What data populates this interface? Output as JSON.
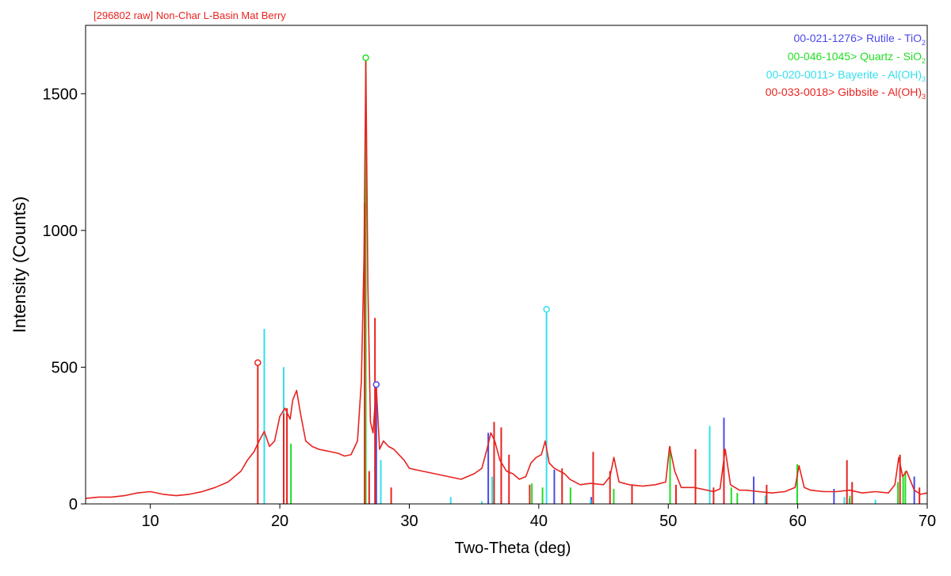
{
  "chart_data": {
    "type": "line",
    "title": "[296802 raw] Non-Char L-Basin Mat Berry",
    "xlabel": "Two-Theta (deg)",
    "ylabel": "Intensity (Counts)",
    "xlim": [
      5,
      70
    ],
    "ylim": [
      0,
      1750
    ],
    "x_ticks": [
      10,
      20,
      30,
      40,
      50,
      60,
      70
    ],
    "y_ticks": [
      0,
      500,
      1000,
      1500
    ],
    "grid": false,
    "legend_position": "top-right",
    "series": [
      {
        "type": "line",
        "color": "#e8231f",
        "x": [
          5,
          6,
          7,
          8,
          9,
          10,
          11,
          12,
          13,
          14,
          15,
          16,
          16.5,
          17,
          17.5,
          18,
          18.4,
          18.8,
          19.2,
          19.6,
          20,
          20.4,
          20.8,
          21,
          21.3,
          21.6,
          22,
          22.5,
          23,
          23.5,
          24,
          24.5,
          25,
          25.5,
          26,
          26.3,
          26.5,
          26.64,
          26.8,
          27,
          27.2,
          27.45,
          27.7,
          28,
          28.4,
          28.8,
          29.2,
          29.6,
          30,
          31,
          32,
          33,
          34,
          35,
          35.6,
          36,
          36.3,
          36.6,
          37,
          37.5,
          38,
          38.5,
          39,
          39.4,
          39.8,
          40.2,
          40.5,
          40.8,
          41.2,
          41.6,
          42,
          42.4,
          42.8,
          43.2,
          44,
          45,
          45.5,
          45.8,
          46.2,
          47,
          48,
          49,
          49.8,
          50.1,
          50.5,
          51,
          52,
          53,
          53.5,
          54,
          54.4,
          54.8,
          55.5,
          56,
          57,
          58,
          59,
          59.8,
          60.1,
          60.5,
          61,
          62,
          63,
          64,
          65,
          66,
          67,
          67.5,
          67.8,
          68.1,
          68.4,
          69,
          69.5,
          70
        ],
        "y": [
          20,
          25,
          25,
          30,
          40,
          45,
          35,
          30,
          35,
          45,
          60,
          80,
          100,
          120,
          160,
          190,
          230,
          265,
          210,
          230,
          320,
          350,
          310,
          380,
          415,
          330,
          230,
          210,
          200,
          195,
          190,
          185,
          175,
          180,
          230,
          450,
          900,
          1620,
          800,
          300,
          260,
          430,
          200,
          230,
          210,
          200,
          180,
          160,
          130,
          120,
          110,
          100,
          90,
          110,
          130,
          200,
          260,
          230,
          160,
          120,
          110,
          90,
          100,
          150,
          170,
          180,
          230,
          150,
          130,
          120,
          110,
          90,
          80,
          70,
          75,
          70,
          100,
          170,
          80,
          70,
          65,
          70,
          80,
          210,
          120,
          60,
          60,
          50,
          45,
          55,
          200,
          70,
          50,
          50,
          45,
          40,
          45,
          60,
          140,
          60,
          50,
          45,
          45,
          50,
          40,
          45,
          40,
          70,
          170,
          100,
          120,
          50,
          35,
          40
        ]
      }
    ],
    "references": [
      {
        "code": "00-021-1276",
        "name": "Rutile",
        "formula_base": "TiO",
        "formula_sub": "2",
        "color": "#4a4ae8",
        "marker_x": 27.45,
        "x": [
          27.45,
          36.1,
          41.2,
          44.05,
          54.3,
          56.6,
          62.8,
          64.0,
          69.0
        ],
        "y": [
          425,
          260,
          125,
          25,
          315,
          100,
          55,
          20,
          100
        ]
      },
      {
        "code": "00-046-1045",
        "name": "Quartz",
        "formula_base": "SiO",
        "formula_sub": "2",
        "color": "#22dd22",
        "marker_x": 26.64,
        "x": [
          20.86,
          26.64,
          36.54,
          39.47,
          40.29,
          42.45,
          45.79,
          50.14,
          54.87,
          55.33,
          59.96,
          64.03,
          67.74,
          68.14,
          68.31
        ],
        "y": [
          220,
          1620,
          90,
          75,
          60,
          60,
          55,
          210,
          60,
          40,
          145,
          30,
          80,
          100,
          120
        ]
      },
      {
        "code": "00-020-0011",
        "name": "Bayerite",
        "formula_base": "Al(OH)",
        "formula_sub": "3",
        "color": "#33e0ee",
        "marker_x": 40.6,
        "x": [
          18.8,
          20.3,
          27.8,
          33.2,
          35.6,
          36.4,
          40.6,
          44.0,
          53.2,
          57.5,
          63.6,
          66.0
        ],
        "y": [
          640,
          500,
          160,
          25,
          10,
          100,
          700,
          15,
          285,
          30,
          25,
          15
        ]
      },
      {
        "code": "00-033-0018",
        "name": "Gibbsite",
        "formula_base": "Al(OH)",
        "formula_sub": "3",
        "color": "#e8231f",
        "marker_x": 18.3,
        "x": [
          18.3,
          20.3,
          20.55,
          26.55,
          26.9,
          27.35,
          28.6,
          36.55,
          37.1,
          37.7,
          39.3,
          41.8,
          44.2,
          45.5,
          47.2,
          50.6,
          52.1,
          53.5,
          54.3,
          57.6,
          63.8,
          64.2,
          67.9,
          69.4
        ],
        "y": [
          505,
          330,
          350,
          1100,
          120,
          680,
          60,
          300,
          280,
          180,
          70,
          130,
          190,
          120,
          70,
          70,
          200,
          60,
          200,
          70,
          160,
          80,
          180,
          60
        ]
      }
    ]
  }
}
